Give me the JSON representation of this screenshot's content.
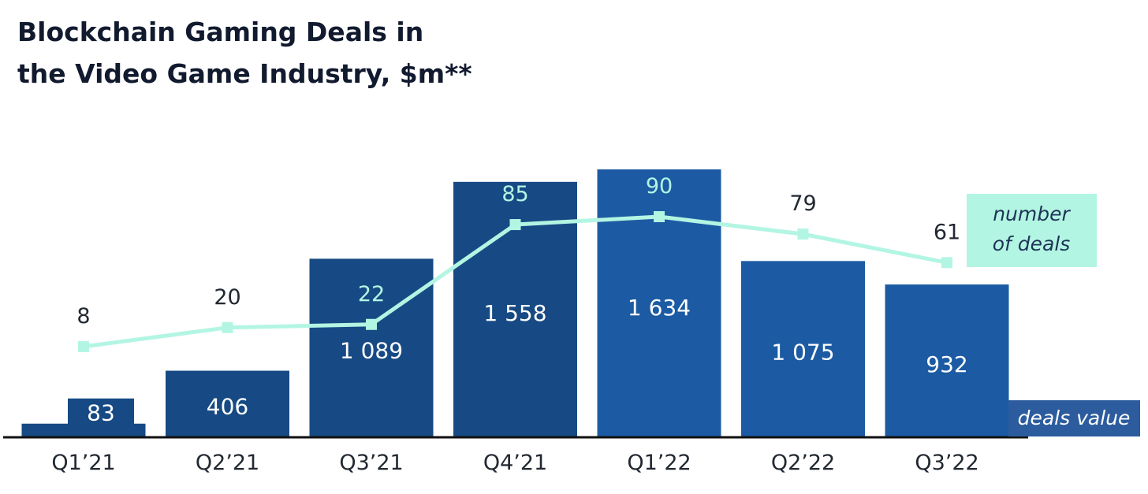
{
  "chart_data": {
    "type": "bar",
    "title_lines": [
      "Blockchain Gaming Deals in",
      "the Video Game Industry, $m**"
    ],
    "categories": [
      "Q1’21",
      "Q2’21",
      "Q3’21",
      "Q4’21",
      "Q1’22",
      "Q2’22",
      "Q3’22"
    ],
    "series": [
      {
        "name": "deals value",
        "type": "bar",
        "values": [
          83,
          406,
          1089,
          1558,
          1634,
          1075,
          932
        ],
        "labels": [
          "83",
          "406",
          "1 089",
          "1 558",
          "1 634",
          "1 075",
          "932"
        ]
      },
      {
        "name": "number of deals",
        "type": "line",
        "values": [
          8,
          20,
          22,
          85,
          90,
          79,
          61
        ],
        "labels": [
          "8",
          "20",
          "22",
          "85",
          "90",
          "79",
          "61"
        ]
      }
    ],
    "legend": {
      "line_lines": [
        "number",
        "of deals"
      ],
      "bar_label": "deals value"
    },
    "colors": {
      "bar_dark": "#174a84",
      "bar_light": "#1c5ba3",
      "line": "#b3f5e3",
      "legend_bar_bg": "#2c5c9e",
      "count_dark_text": "#222831",
      "axis": "#111111"
    }
  }
}
